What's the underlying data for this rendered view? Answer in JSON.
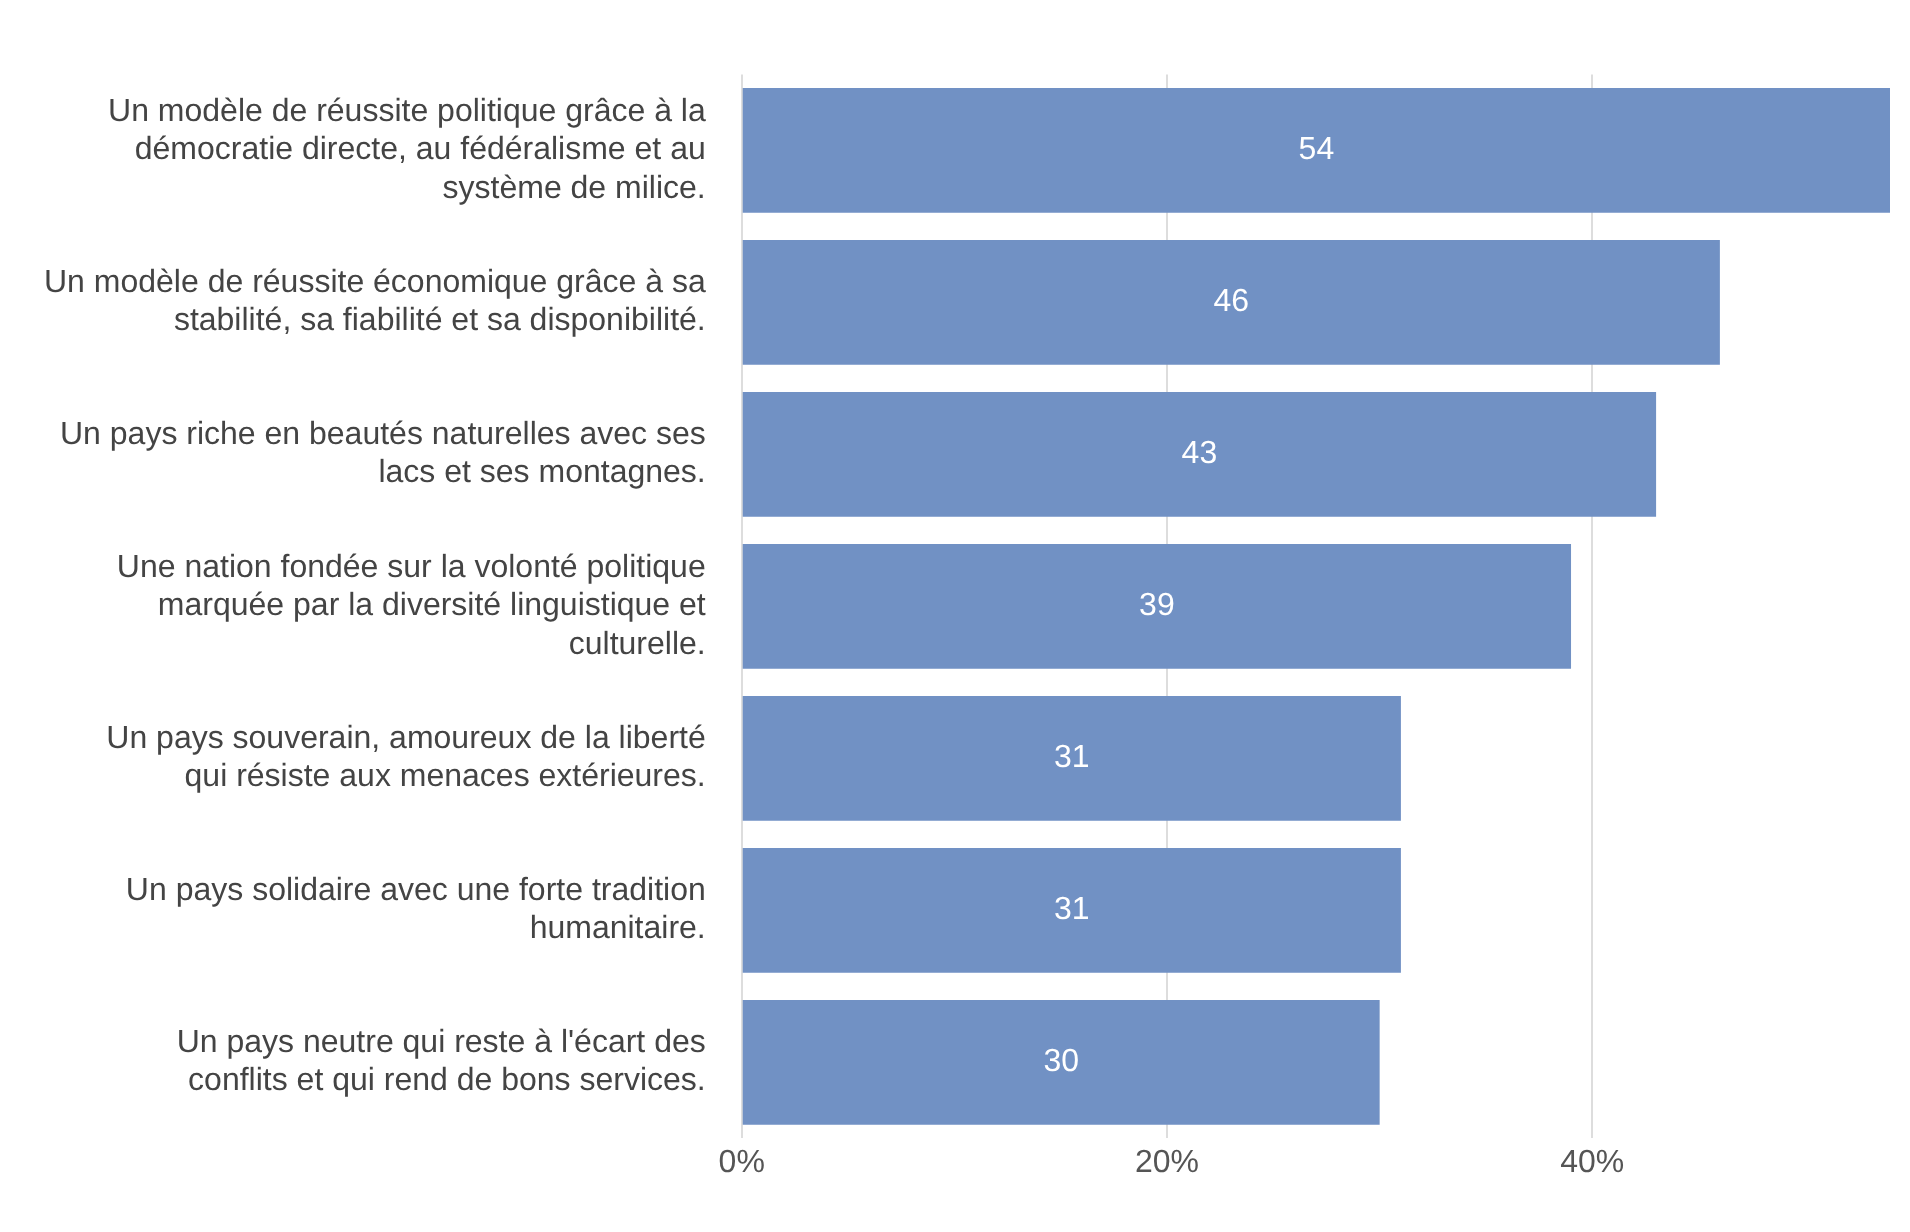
{
  "chart_data": {
    "type": "bar",
    "orientation": "horizontal",
    "categories": [
      "Un modèle de réussite politique grâce à la démocratie directe, au fédéralisme et au système de milice.",
      "Un modèle de réussite économique grâce à sa stabilité, sa fiabilité et sa disponibilité.",
      "Un pays riche en beautés naturelles avec ses lacs et ses montagnes.",
      "Une nation fondée sur la volonté politique marquée par la diversité linguistique et culturelle.",
      "Un pays souverain, amoureux de la liberté qui résiste aux menaces extérieures.",
      "Un pays solidaire avec une forte tradition humanitaire.",
      "Un pays neutre qui reste à l'écart des conflits et qui rend de bons services."
    ],
    "values": [
      54,
      46,
      43,
      39,
      31,
      31,
      30
    ],
    "color": "#7191c4",
    "xlim": [
      0,
      54
    ],
    "xticks": [
      {
        "value": 0,
        "label": "0%"
      },
      {
        "value": 20,
        "label": "20%"
      },
      {
        "value": 40,
        "label": "40%"
      }
    ],
    "grid": "x",
    "data_labels": true
  }
}
